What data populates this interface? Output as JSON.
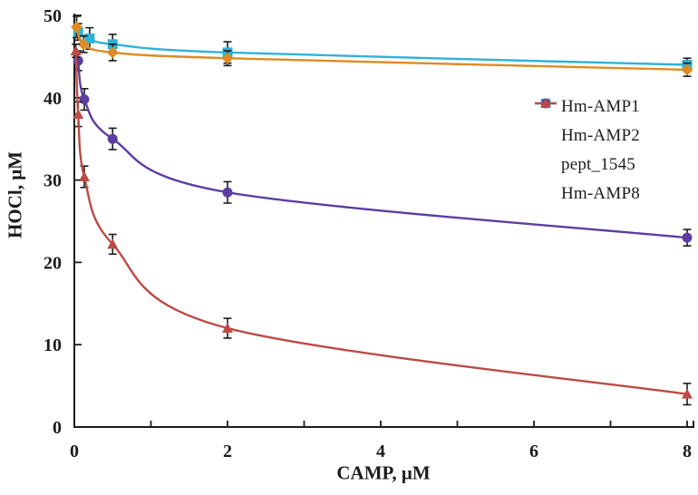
{
  "figure": {
    "background_color": "#ffffff",
    "axis_color": "#1b1b1b",
    "error_bar_color": "#1c1c1c"
  },
  "chart_data": {
    "type": "line",
    "title": "",
    "xlabel": "CAMP, μM",
    "ylabel": "HOCl, μM",
    "xlim": [
      0,
      8
    ],
    "ylim": [
      0,
      50
    ],
    "x_tick_labels": [
      0,
      2,
      4,
      6,
      8
    ],
    "x_tick_marks": [
      1,
      2,
      3,
      4,
      5,
      6,
      7,
      8
    ],
    "y_tick_labels": [
      0,
      10,
      20,
      30,
      40,
      50
    ],
    "y_tick_marks": [
      10,
      20,
      30,
      40,
      50
    ],
    "grid": false,
    "legend_position": "right-middle",
    "error_bars": true,
    "series": [
      {
        "name": "Hm-AMP1",
        "color": "#2eb2d9",
        "marker": "square",
        "x": [
          0.05,
          0.2,
          0.5,
          2,
          8
        ],
        "y": [
          48.0,
          47.2,
          46.5,
          45.5,
          44.0
        ],
        "err": [
          1.0,
          1.3,
          1.2,
          1.3,
          0.8
        ]
      },
      {
        "name": "Hm-AMP2",
        "color": "#dd8b25",
        "marker": "diamond",
        "x": [
          0.03,
          0.12,
          0.5,
          2,
          8
        ],
        "y": [
          48.6,
          46.5,
          45.5,
          44.8,
          43.4
        ],
        "err": [
          1.3,
          1.0,
          1.0,
          0.9,
          0.8
        ]
      },
      {
        "name": "pept_1545",
        "color": "#5c3da1",
        "marker": "circle",
        "x": [
          0.05,
          0.13,
          0.5,
          2,
          8
        ],
        "y": [
          44.5,
          39.8,
          35.0,
          28.5,
          23.0
        ],
        "err": [
          1.2,
          1.3,
          1.3,
          1.3,
          1.0
        ]
      },
      {
        "name": "Hm-AMP8",
        "color": "#bc4b45",
        "marker": "triangle",
        "x": [
          0.02,
          0.05,
          0.13,
          0.5,
          2,
          8
        ],
        "y": [
          45.7,
          38.0,
          30.4,
          22.2,
          12.0,
          4.0
        ],
        "err": [
          0.8,
          1.5,
          1.3,
          1.2,
          1.2,
          1.3
        ]
      }
    ]
  }
}
